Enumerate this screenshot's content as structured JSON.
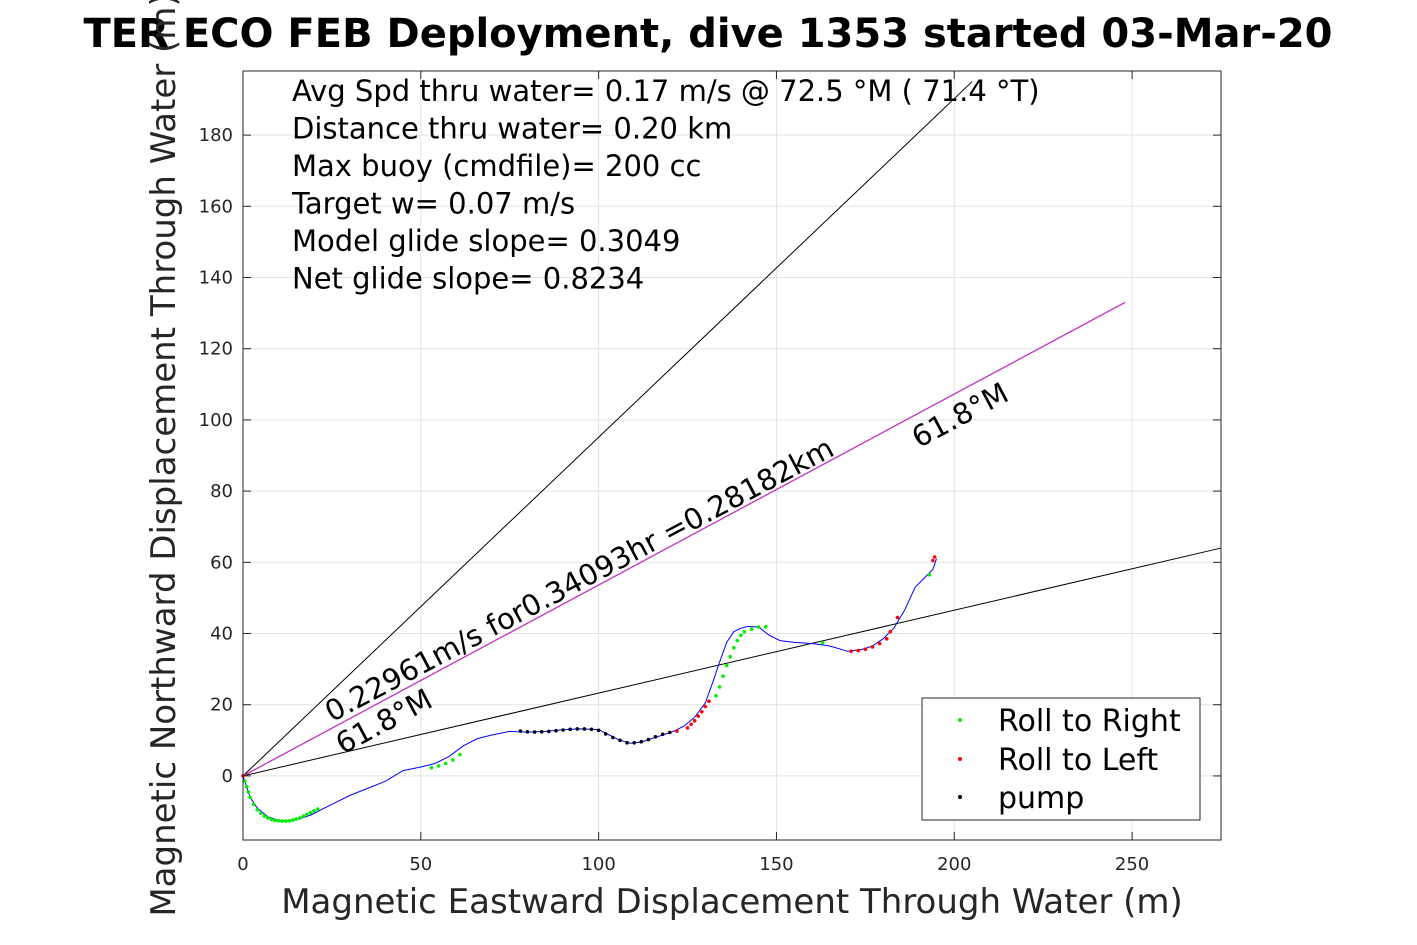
{
  "chart_data": {
    "type": "scatter",
    "title": "TER ECO FEB Deployment, dive 1353 started 03-Mar-20",
    "xlabel": "Magnetic Eastward Displacement Through Water (m)",
    "ylabel": "Magnetic Northward Displacement Through Water (m)",
    "xlim": [
      0,
      275
    ],
    "ylim": [
      -18,
      198
    ],
    "xticks": [
      "0",
      "50",
      "100",
      "150",
      "200",
      "250"
    ],
    "yticks": [
      "0",
      "20",
      "40",
      "60",
      "80",
      "100",
      "120",
      "140",
      "160",
      "180"
    ],
    "xtick_values": [
      0,
      50,
      100,
      150,
      200,
      250
    ],
    "ytick_values": [
      0,
      20,
      40,
      60,
      80,
      100,
      120,
      140,
      160,
      180
    ],
    "grid": true,
    "stats_text": [
      "Avg Spd thru water=  0.17 m/s @  72.5 °M ( 71.4 °T)",
      "Distance thru water=  0.20 km",
      "Max buoy (cmdfile)= 200 cc",
      "Target w= 0.07 m/s",
      "Model glide slope= 0.3049",
      "Net glide slope= 0.8234"
    ],
    "annotations": [
      {
        "text": "0.22961m/s for0.34093hr =0.28182km",
        "x": 25,
        "y": 15,
        "angle_deg": 28.0
      },
      {
        "text": "61.8°M",
        "x": 190,
        "y": 92,
        "angle_deg": 28.0
      },
      {
        "text": "61.8°M",
        "x": 28,
        "y": 6,
        "angle_deg": 28.0
      }
    ],
    "reference_lines": [
      {
        "name": "heading-line",
        "color": "#000000",
        "x": [
          0,
          205
        ],
        "y": [
          0,
          195
        ]
      },
      {
        "name": "current-line",
        "color": "#000000",
        "x": [
          0,
          275
        ],
        "y": [
          0,
          64
        ]
      },
      {
        "name": "net-line",
        "color": "#000000",
        "x": [
          0,
          248
        ],
        "y": [
          0,
          133
        ]
      },
      {
        "name": "net-line-overlay",
        "color": "#cc33cc",
        "x": [
          0,
          248
        ],
        "y": [
          0,
          133
        ]
      }
    ],
    "track": {
      "color": "#0000ff",
      "x": [
        0,
        1,
        2,
        4,
        7,
        10,
        13,
        16,
        19,
        22,
        26,
        30,
        35,
        40,
        45,
        50,
        54,
        58,
        62,
        66,
        70,
        75,
        80,
        85,
        90,
        95,
        100,
        103,
        106,
        109,
        112,
        115,
        118,
        121,
        124,
        127,
        130,
        132,
        134,
        136,
        138,
        140,
        142,
        145,
        148,
        151,
        155,
        160,
        165,
        170,
        174,
        177,
        180,
        183,
        186,
        189,
        192,
        194,
        195
      ],
      "y": [
        0,
        -3,
        -6,
        -9,
        -11.5,
        -12.5,
        -12.7,
        -12,
        -11,
        -9.5,
        -7.5,
        -5.5,
        -3.5,
        -1.5,
        1.5,
        2.5,
        3.5,
        5.5,
        8.5,
        10.5,
        11.5,
        12.5,
        12.3,
        12.5,
        13,
        13.2,
        13,
        11.5,
        10,
        9.2,
        9.5,
        10.5,
        11.5,
        12.5,
        14,
        16.5,
        20.5,
        26,
        32,
        37.5,
        40.5,
        41.5,
        42,
        41.8,
        39.5,
        38,
        37.5,
        37.2,
        36.5,
        35,
        35.5,
        36.5,
        38.5,
        41.5,
        46.5,
        53,
        56,
        58,
        61
      ]
    },
    "series": [
      {
        "name": "Roll to Right",
        "color": "#00ee00",
        "x": [
          0.5,
          1,
          1.5,
          2,
          3,
          4,
          5,
          6,
          7,
          8,
          9,
          10,
          11,
          12,
          13,
          14,
          15,
          16,
          17,
          18,
          19,
          20,
          21,
          53,
          55,
          57,
          59,
          61,
          133,
          134,
          135,
          136,
          137,
          138,
          139,
          140,
          141,
          143,
          145,
          147,
          163,
          193
        ],
        "y": [
          -1.5,
          -3,
          -4.5,
          -6,
          -8,
          -9.5,
          -10.5,
          -11.3,
          -11.8,
          -12.2,
          -12.5,
          -12.6,
          -12.7,
          -12.7,
          -12.6,
          -12.4,
          -12.1,
          -11.8,
          -11.3,
          -10.8,
          -10.3,
          -9.8,
          -9.3,
          2.3,
          2.8,
          3.5,
          4.5,
          6,
          22.5,
          25,
          28,
          31,
          33.5,
          36,
          38,
          39.5,
          40.5,
          41.2,
          41.8,
          41.9,
          37.4,
          56.5
        ]
      },
      {
        "name": "Roll to Left",
        "color": "#ff0000",
        "x": [
          0,
          122,
          125,
          126,
          127,
          128,
          129,
          130,
          131,
          171,
          173,
          175,
          177,
          179,
          181,
          182,
          184,
          194,
          194.5
        ],
        "y": [
          0,
          12.6,
          13.5,
          14.5,
          15.5,
          16.8,
          18,
          19.5,
          21,
          35,
          35.2,
          35.6,
          36.2,
          37.2,
          38.5,
          40.5,
          44.5,
          60.5,
          61.5
        ]
      },
      {
        "name": "pump",
        "color": "#000000",
        "x": [
          78,
          80,
          82,
          84,
          86,
          88,
          90,
          92,
          94,
          96,
          98,
          100,
          102,
          104,
          106,
          108,
          110,
          112,
          114,
          116,
          118,
          120
        ],
        "y": [
          12.6,
          12.4,
          12.3,
          12.4,
          12.5,
          12.7,
          12.9,
          13.1,
          13.2,
          13.2,
          13.1,
          12.8,
          11.8,
          10.8,
          10,
          9.3,
          9.3,
          9.6,
          10.2,
          11,
          11.7,
          12.2
        ]
      }
    ]
  }
}
